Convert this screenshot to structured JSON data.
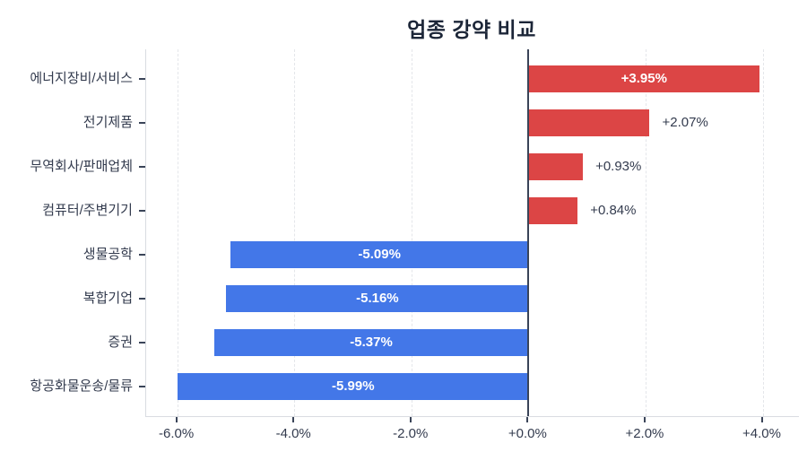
{
  "title": "업종 강약 비교",
  "chart_data": {
    "type": "bar",
    "orientation": "horizontal",
    "title": "업종 강약 비교",
    "categories": [
      "에너지장비/서비스",
      "전기제품",
      "무역회사/판매업체",
      "컴퓨터/주변기기",
      "생물공학",
      "복합기업",
      "증권",
      "항공화물운송/물류"
    ],
    "values": [
      3.95,
      2.07,
      0.93,
      0.84,
      -5.09,
      -5.16,
      -5.37,
      -5.99
    ],
    "value_labels": [
      "+3.95%",
      "+2.07%",
      "+0.93%",
      "+0.84%",
      "-5.09%",
      "-5.16%",
      "-5.37%",
      "-5.99%"
    ],
    "xlabel": "",
    "ylabel": "",
    "xlim": [
      -6.53,
      4.62
    ],
    "xticks": [
      -6,
      -4,
      -2,
      0,
      2,
      4
    ],
    "xtick_labels": [
      "-6.0%",
      "-4.0%",
      "-2.0%",
      "+0.0%",
      "+2.0%",
      "+4.0%"
    ],
    "grid": "vertical-dashed",
    "legend": "none",
    "colors": {
      "positive_bar": "#dc4545",
      "negative_bar": "#4377e8",
      "zero_line": "#3a4458",
      "gridline": "#e4e6ea",
      "spine": "#d9dce1",
      "tick_mark": "#3a4458",
      "label_inside": "#ffffff",
      "label_outside": "#333b4e",
      "tick_text": "#333b4e",
      "category_text": "#333b4e",
      "title_text": "#1c2638"
    }
  }
}
